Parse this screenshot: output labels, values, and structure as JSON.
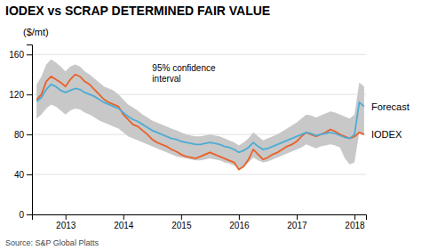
{
  "chart_data": {
    "type": "line",
    "title": "IODEX vs SCRAP DETERMINED FAIR VALUE",
    "y_label": "($/mt)",
    "source": "Source: S&P Global Platts",
    "x": [
      2012.5,
      2012.583,
      2012.667,
      2012.75,
      2012.833,
      2012.917,
      2013.0,
      2013.083,
      2013.167,
      2013.25,
      2013.333,
      2013.417,
      2013.5,
      2013.583,
      2013.667,
      2013.75,
      2013.833,
      2013.917,
      2014.0,
      2014.083,
      2014.167,
      2014.25,
      2014.333,
      2014.417,
      2014.5,
      2014.583,
      2014.667,
      2014.75,
      2014.833,
      2014.917,
      2015.0,
      2015.083,
      2015.167,
      2015.25,
      2015.333,
      2015.417,
      2015.5,
      2015.583,
      2015.667,
      2015.75,
      2015.833,
      2015.917,
      2016.0,
      2016.083,
      2016.167,
      2016.25,
      2016.333,
      2016.417,
      2016.5,
      2016.583,
      2016.667,
      2016.75,
      2016.833,
      2016.917,
      2017.0,
      2017.083,
      2017.167,
      2017.25,
      2017.333,
      2017.417,
      2017.5,
      2017.583,
      2017.667,
      2017.75,
      2017.833,
      2017.917,
      2018.0,
      2018.083,
      2018.167
    ],
    "xlim": [
      2012.42,
      2018.2
    ],
    "xticks": [
      2013,
      2014,
      2015,
      2016,
      2017,
      2018
    ],
    "ylim": [
      0,
      170
    ],
    "yticks": [
      0,
      40,
      80,
      120,
      160
    ],
    "grid": true,
    "series": [
      {
        "name": "95% confidence\ninterval",
        "type": "band",
        "color": "#c8c8c8",
        "upper": [
          130,
          138,
          150,
          155,
          152,
          148,
          143,
          148,
          150,
          148,
          143,
          140,
          136,
          132,
          128,
          126,
          124,
          120,
          115,
          110,
          107,
          104,
          100,
          97,
          94,
          92,
          90,
          88,
          86,
          84,
          82,
          80,
          79,
          78,
          78,
          79,
          80,
          79,
          78,
          76,
          74,
          72,
          69,
          72,
          76,
          82,
          78,
          74,
          76,
          78,
          80,
          83,
          86,
          89,
          92,
          96,
          100,
          99,
          97,
          99,
          101,
          103,
          102,
          100,
          98,
          96,
          100,
          132,
          128
        ],
        "lower": [
          96,
          100,
          106,
          110,
          108,
          104,
          100,
          104,
          106,
          105,
          102,
          100,
          97,
          94,
          92,
          90,
          88,
          86,
          82,
          78,
          76,
          74,
          72,
          70,
          68,
          66,
          64,
          62,
          60,
          58,
          57,
          56,
          55,
          54,
          54,
          55,
          56,
          55,
          54,
          52,
          51,
          49,
          46,
          48,
          52,
          57,
          54,
          52,
          53,
          55,
          57,
          59,
          61,
          63,
          65,
          67,
          70,
          68,
          66,
          68,
          69,
          70,
          69,
          67,
          56,
          50,
          52,
          82,
          80
        ]
      },
      {
        "name": "IODEX",
        "type": "line",
        "color": "#e8622a",
        "values": [
          115,
          120,
          133,
          138,
          135,
          132,
          128,
          135,
          140,
          138,
          133,
          130,
          125,
          120,
          115,
          112,
          110,
          108,
          100,
          95,
          90,
          88,
          84,
          80,
          75,
          72,
          70,
          68,
          65,
          63,
          60,
          58,
          57,
          56,
          58,
          60,
          62,
          60,
          58,
          56,
          54,
          52,
          45,
          48,
          55,
          65,
          60,
          55,
          57,
          60,
          62,
          65,
          68,
          70,
          73,
          78,
          82,
          80,
          78,
          80,
          82,
          85,
          83,
          80,
          78,
          76,
          78,
          82,
          80
        ]
      },
      {
        "name": "Forecast",
        "type": "line",
        "color": "#4dacd4",
        "values": [
          113,
          117,
          125,
          130,
          128,
          124,
          122,
          124,
          126,
          125,
          122,
          120,
          118,
          115,
          112,
          110,
          108,
          106,
          102,
          98,
          95,
          93,
          90,
          87,
          84,
          82,
          80,
          78,
          76,
          75,
          73,
          72,
          71,
          70,
          70,
          71,
          72,
          71,
          70,
          68,
          67,
          65,
          62,
          64,
          67,
          72,
          68,
          65,
          66,
          68,
          70,
          72,
          74,
          76,
          78,
          80,
          82,
          81,
          79,
          80,
          81,
          82,
          81,
          79,
          77,
          76,
          80,
          112,
          108
        ]
      }
    ]
  }
}
